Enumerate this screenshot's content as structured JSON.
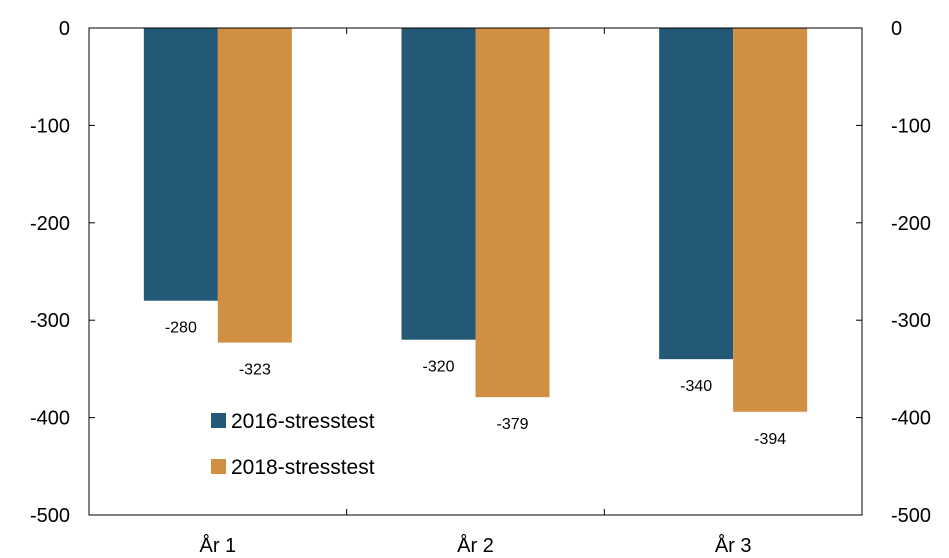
{
  "chart_data": {
    "type": "bar",
    "categories": [
      "År 1",
      "År 2",
      "År 3"
    ],
    "series": [
      {
        "name": "2016-stresstest",
        "values": [
          -280,
          -320,
          -340
        ],
        "color": "#235877"
      },
      {
        "name": "2018-stresstest",
        "values": [
          -323,
          -379,
          -394
        ],
        "color": "#D08F43"
      }
    ],
    "ylim": [
      -500,
      0
    ],
    "yticks": [
      0,
      -100,
      -200,
      -300,
      -400,
      -500
    ],
    "ytick_labels": [
      "0",
      "-100",
      "-200",
      "-300",
      "-400",
      "-500"
    ],
    "secondary_ytick_labels": [
      "0",
      "-100",
      "-200",
      "-300",
      "-400",
      "-500"
    ],
    "data_labels": [
      [
        "-280",
        "-320",
        "-340"
      ],
      [
        "-323",
        "-379",
        "-394"
      ]
    ],
    "legend_position": "lower-left",
    "grid": false,
    "title": "",
    "xlabel": "",
    "ylabel": ""
  }
}
